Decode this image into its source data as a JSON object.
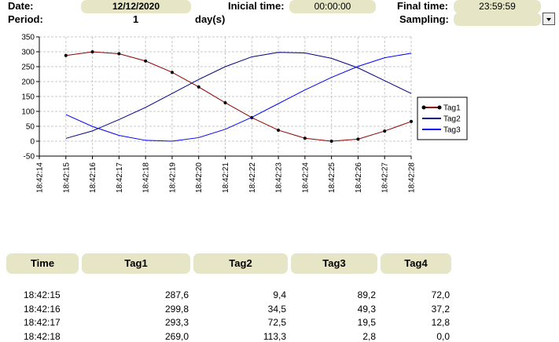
{
  "header": {
    "date_label": "Date:",
    "date_value": "12/12/2020",
    "initial_label": "Inicial time:",
    "initial_value": "00:00:00",
    "final_label": "Final time:",
    "final_value": "23:59:59",
    "period_label": "Period:",
    "period_value": "1",
    "period_unit": "day(s)",
    "sampling_label": "Sampling:"
  },
  "chart_data": {
    "type": "line",
    "categories": [
      "18:42:14",
      "18:42:15",
      "18:42:16",
      "18:42:17",
      "18:42:18",
      "18:42:19",
      "18:42:20",
      "18:42:21",
      "18:42:22",
      "18:42:23",
      "18:42:24",
      "18:42:25",
      "18:42:26",
      "18:42:27",
      "18:42:28"
    ],
    "series": [
      {
        "name": "Tag1",
        "color": "#8b0000",
        "marker_color": "#000000",
        "values": [
          null,
          287.6,
          299.8,
          293.3,
          269.0,
          231,
          182,
          129,
          79,
          37,
          10,
          0,
          7,
          34,
          66
        ]
      },
      {
        "name": "Tag2",
        "color": "#000080",
        "values": [
          null,
          9.4,
          34.5,
          72.5,
          113.3,
          160,
          207,
          250,
          283,
          298,
          296,
          278,
          246,
          203,
          160
        ]
      },
      {
        "name": "Tag3",
        "color": "#0000ff",
        "values": [
          null,
          89.2,
          49.3,
          19.5,
          2.8,
          0,
          12,
          40,
          80,
          126,
          172,
          214,
          251,
          280,
          295
        ]
      }
    ],
    "ylim": [
      -50,
      350
    ],
    "yticks": [
      -50,
      0,
      50,
      100,
      150,
      200,
      250,
      300,
      350
    ],
    "grid": true,
    "legend": "right"
  },
  "table": {
    "columns": [
      "Time",
      "Tag1",
      "Tag2",
      "Tag3",
      "Tag4"
    ],
    "rows": [
      [
        "18:42:15",
        "287,6",
        "9,4",
        "89,2",
        "72,0"
      ],
      [
        "18:42:16",
        "299,8",
        "34,5",
        "49,3",
        "37,2"
      ],
      [
        "18:42:17",
        "293,3",
        "72,5",
        "19,5",
        "12,8"
      ],
      [
        "18:42:18",
        "269,0",
        "113,3",
        "2,8",
        "0,0"
      ]
    ]
  }
}
